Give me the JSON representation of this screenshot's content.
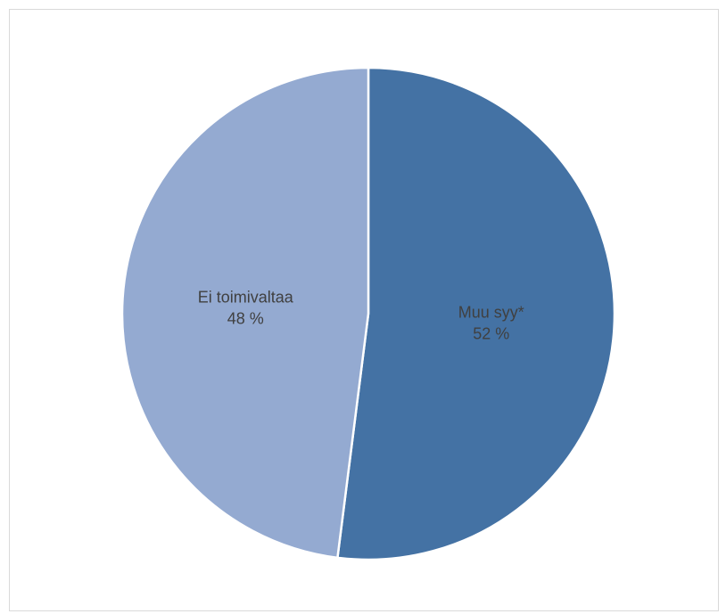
{
  "chart_data": {
    "type": "pie",
    "slices": [
      {
        "label": "Muu syy*",
        "value": 52,
        "value_label": "52 %",
        "color": "#4472a4"
      },
      {
        "label": "Ei toimivaltaa",
        "value": 48,
        "value_label": "48 %",
        "color": "#94aad1"
      }
    ],
    "start_angle": "12 o'clock",
    "direction": "clockwise",
    "labels_position": "inside",
    "legend": "none"
  }
}
